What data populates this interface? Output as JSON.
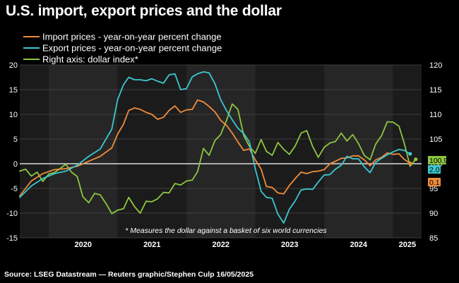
{
  "title": "U.S. import, export prices and the dollar",
  "source": "Source: LSEG Datastream — Reuters graphic/Stephen Culp 16/05/2025",
  "chart_data": {
    "type": "line",
    "xlim": [
      "2019-08-01",
      "2025-06-01"
    ],
    "x_ticks": [
      {
        "date": "2020-01-01",
        "label": "2020"
      },
      {
        "date": "2021-01-01",
        "label": "2021"
      },
      {
        "date": "2022-01-01",
        "label": "2022"
      },
      {
        "date": "2023-01-01",
        "label": "2023"
      },
      {
        "date": "2024-01-01",
        "label": "2024"
      },
      {
        "date": "2025-01-01",
        "label": "2025"
      }
    ],
    "y_left": {
      "min": -15,
      "max": 20,
      "ticks": [
        20,
        15,
        10,
        5,
        0,
        -5,
        -10,
        -15
      ]
    },
    "y_right": {
      "min": 85,
      "max": 120,
      "ticks": [
        120,
        115,
        110,
        105,
        100,
        95,
        90,
        85
      ]
    },
    "grid": true,
    "annotation": "* Measures the dollar against a basket of six world currencies",
    "legend_position": "top-left",
    "series": [
      {
        "name": "Import prices - year-on-year percent change",
        "axis": "left",
        "color": "#F08C3A",
        "end_label": "0.1",
        "points": [
          [
            "2019-08-01",
            -6.5
          ],
          [
            "2019-10-01",
            -3.5
          ],
          [
            "2019-12-01",
            -2.0
          ],
          [
            "2020-02-01",
            -1.2
          ],
          [
            "2020-04-01",
            -1.0
          ],
          [
            "2020-06-01",
            -0.5
          ],
          [
            "2020-08-01",
            0.5
          ],
          [
            "2020-10-01",
            1.5
          ],
          [
            "2020-12-01",
            3.2
          ],
          [
            "2021-01-01",
            6.0
          ],
          [
            "2021-02-01",
            8.0
          ],
          [
            "2021-03-01",
            10.8
          ],
          [
            "2021-04-01",
            11.3
          ],
          [
            "2021-05-01",
            11.0
          ],
          [
            "2021-06-01",
            10.4
          ],
          [
            "2021-07-01",
            10.0
          ],
          [
            "2021-08-01",
            9.0
          ],
          [
            "2021-09-01",
            9.4
          ],
          [
            "2021-10-01",
            10.8
          ],
          [
            "2021-11-01",
            11.7
          ],
          [
            "2021-12-01",
            10.4
          ],
          [
            "2022-01-01",
            10.9
          ],
          [
            "2022-02-01",
            11.0
          ],
          [
            "2022-03-01",
            12.9
          ],
          [
            "2022-04-01",
            12.5
          ],
          [
            "2022-05-01",
            11.6
          ],
          [
            "2022-06-01",
            10.5
          ],
          [
            "2022-07-01",
            8.8
          ],
          [
            "2022-08-01",
            7.8
          ],
          [
            "2022-09-01",
            6.2
          ],
          [
            "2022-10-01",
            4.4
          ],
          [
            "2022-11-01",
            2.7
          ],
          [
            "2022-12-01",
            3.0
          ],
          [
            "2023-01-01",
            0.8
          ],
          [
            "2023-02-01",
            -1.1
          ],
          [
            "2023-03-01",
            -4.6
          ],
          [
            "2023-04-01",
            -4.8
          ],
          [
            "2023-05-01",
            -5.9
          ],
          [
            "2023-06-01",
            -6.1
          ],
          [
            "2023-07-01",
            -4.4
          ],
          [
            "2023-08-01",
            -3.0
          ],
          [
            "2023-09-01",
            -1.7
          ],
          [
            "2023-10-01",
            -2.0
          ],
          [
            "2023-11-01",
            -1.6
          ],
          [
            "2023-12-01",
            -1.5
          ],
          [
            "2024-01-01",
            -1.2
          ],
          [
            "2024-02-01",
            0.0
          ],
          [
            "2024-03-01",
            0.5
          ],
          [
            "2024-04-01",
            1.1
          ],
          [
            "2024-05-01",
            1.2
          ],
          [
            "2024-06-01",
            1.6
          ],
          [
            "2024-07-01",
            1.6
          ],
          [
            "2024-08-01",
            0.8
          ],
          [
            "2024-09-01",
            -0.4
          ],
          [
            "2024-10-01",
            0.8
          ],
          [
            "2024-11-01",
            1.3
          ],
          [
            "2024-12-01",
            2.2
          ],
          [
            "2025-01-01",
            1.9
          ],
          [
            "2025-02-01",
            2.0
          ],
          [
            "2025-03-01",
            0.9
          ],
          [
            "2025-04-01",
            0.1
          ]
        ]
      },
      {
        "name": "Export prices - year-on-year percent change",
        "axis": "left",
        "color": "#3CC8D0",
        "end_label": "2.0",
        "points": [
          [
            "2019-08-01",
            -6.8
          ],
          [
            "2019-10-01",
            -4.5
          ],
          [
            "2019-12-01",
            -3.0
          ],
          [
            "2020-02-01",
            -2.0
          ],
          [
            "2020-04-01",
            -1.5
          ],
          [
            "2020-06-01",
            -0.3
          ],
          [
            "2020-08-01",
            1.5
          ],
          [
            "2020-10-01",
            3.0
          ],
          [
            "2020-12-01",
            7.0
          ],
          [
            "2021-01-01",
            13.0
          ],
          [
            "2021-02-01",
            16.0
          ],
          [
            "2021-03-01",
            17.5
          ],
          [
            "2021-04-01",
            17.0
          ],
          [
            "2021-05-01",
            17.0
          ],
          [
            "2021-06-01",
            16.8
          ],
          [
            "2021-07-01",
            17.2
          ],
          [
            "2021-08-01",
            16.7
          ],
          [
            "2021-09-01",
            16.3
          ],
          [
            "2021-10-01",
            18.0
          ],
          [
            "2021-11-01",
            18.2
          ],
          [
            "2021-12-01",
            15.0
          ],
          [
            "2022-01-01",
            15.2
          ],
          [
            "2022-02-01",
            17.6
          ],
          [
            "2022-03-01",
            18.2
          ],
          [
            "2022-04-01",
            18.6
          ],
          [
            "2022-05-01",
            18.4
          ],
          [
            "2022-06-01",
            16.2
          ],
          [
            "2022-07-01",
            13.0
          ],
          [
            "2022-08-01",
            10.8
          ],
          [
            "2022-09-01",
            8.9
          ],
          [
            "2022-10-01",
            7.2
          ],
          [
            "2022-11-01",
            6.1
          ],
          [
            "2022-12-01",
            4.4
          ],
          [
            "2023-01-01",
            -1.0
          ],
          [
            "2023-02-01",
            -5.6
          ],
          [
            "2023-03-01",
            -6.8
          ],
          [
            "2023-04-01",
            -7.0
          ],
          [
            "2023-05-01",
            -10.2
          ],
          [
            "2023-06-01",
            -12.0
          ],
          [
            "2023-07-01",
            -9.2
          ],
          [
            "2023-08-01",
            -7.5
          ],
          [
            "2023-09-01",
            -5.3
          ],
          [
            "2023-10-01",
            -5.1
          ],
          [
            "2023-11-01",
            -5.2
          ],
          [
            "2023-12-01",
            -3.7
          ],
          [
            "2024-01-01",
            -2.3
          ],
          [
            "2024-02-01",
            -2.2
          ],
          [
            "2024-03-01",
            -1.1
          ],
          [
            "2024-04-01",
            -0.3
          ],
          [
            "2024-05-01",
            1.5
          ],
          [
            "2024-06-01",
            1.0
          ],
          [
            "2024-07-01",
            1.0
          ],
          [
            "2024-08-01",
            -0.6
          ],
          [
            "2024-09-01",
            -1.8
          ],
          [
            "2024-10-01",
            0.3
          ],
          [
            "2024-11-01",
            1.1
          ],
          [
            "2024-12-01",
            1.8
          ],
          [
            "2025-01-01",
            2.4
          ],
          [
            "2025-02-01",
            2.9
          ],
          [
            "2025-03-01",
            2.7
          ],
          [
            "2025-04-01",
            2.0
          ]
        ]
      },
      {
        "name": "Right axis: dollar index*",
        "axis": "right",
        "color": "#8DC63F",
        "end_label": "100.9",
        "points": [
          [
            "2019-08-01",
            98.5
          ],
          [
            "2019-09-01",
            98.9
          ],
          [
            "2019-10-01",
            97.5
          ],
          [
            "2019-11-01",
            98.3
          ],
          [
            "2019-12-01",
            96.4
          ],
          [
            "2020-01-01",
            97.9
          ],
          [
            "2020-02-01",
            98.2
          ],
          [
            "2020-03-01",
            99.0
          ],
          [
            "2020-04-01",
            99.9
          ],
          [
            "2020-05-01",
            98.3
          ],
          [
            "2020-06-01",
            97.4
          ],
          [
            "2020-07-01",
            93.3
          ],
          [
            "2020-08-01",
            92.1
          ],
          [
            "2020-09-01",
            94.0
          ],
          [
            "2020-10-01",
            93.7
          ],
          [
            "2020-11-01",
            91.9
          ],
          [
            "2020-12-01",
            89.9
          ],
          [
            "2021-01-01",
            90.6
          ],
          [
            "2021-02-01",
            90.9
          ],
          [
            "2021-03-01",
            93.2
          ],
          [
            "2021-04-01",
            91.3
          ],
          [
            "2021-05-01",
            90.0
          ],
          [
            "2021-06-01",
            92.4
          ],
          [
            "2021-07-01",
            92.3
          ],
          [
            "2021-08-01",
            92.9
          ],
          [
            "2021-09-01",
            94.2
          ],
          [
            "2021-10-01",
            94.1
          ],
          [
            "2021-11-01",
            96.0
          ],
          [
            "2021-12-01",
            95.7
          ],
          [
            "2022-01-01",
            96.5
          ],
          [
            "2022-02-01",
            96.7
          ],
          [
            "2022-03-01",
            98.4
          ],
          [
            "2022-04-01",
            103.1
          ],
          [
            "2022-05-01",
            101.7
          ],
          [
            "2022-06-01",
            104.7
          ],
          [
            "2022-07-01",
            105.9
          ],
          [
            "2022-08-01",
            108.7
          ],
          [
            "2022-09-01",
            112.1
          ],
          [
            "2022-10-01",
            111.0
          ],
          [
            "2022-11-01",
            105.7
          ],
          [
            "2022-12-01",
            103.5
          ],
          [
            "2023-01-01",
            102.1
          ],
          [
            "2023-02-01",
            104.9
          ],
          [
            "2023-03-01",
            102.5
          ],
          [
            "2023-04-01",
            101.7
          ],
          [
            "2023-05-01",
            104.3
          ],
          [
            "2023-06-01",
            102.9
          ],
          [
            "2023-07-01",
            101.9
          ],
          [
            "2023-08-01",
            103.6
          ],
          [
            "2023-09-01",
            106.2
          ],
          [
            "2023-10-01",
            106.7
          ],
          [
            "2023-11-01",
            103.5
          ],
          [
            "2023-12-01",
            101.3
          ],
          [
            "2024-01-01",
            103.3
          ],
          [
            "2024-02-01",
            104.2
          ],
          [
            "2024-03-01",
            104.5
          ],
          [
            "2024-04-01",
            106.2
          ],
          [
            "2024-05-01",
            104.6
          ],
          [
            "2024-06-01",
            105.9
          ],
          [
            "2024-07-01",
            104.1
          ],
          [
            "2024-08-01",
            101.7
          ],
          [
            "2024-09-01",
            100.8
          ],
          [
            "2024-10-01",
            104.0
          ],
          [
            "2024-11-01",
            105.7
          ],
          [
            "2024-12-01",
            108.5
          ],
          [
            "2025-01-01",
            108.4
          ],
          [
            "2025-02-01",
            107.6
          ],
          [
            "2025-03-01",
            104.2
          ],
          [
            "2025-04-01",
            99.5
          ],
          [
            "2025-05-01",
            100.9
          ]
        ]
      }
    ]
  }
}
